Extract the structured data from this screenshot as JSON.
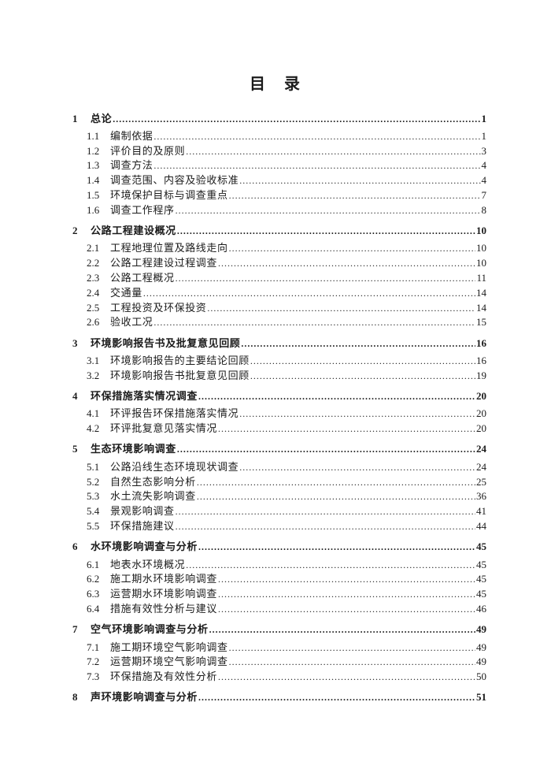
{
  "page": {
    "title": "目　录",
    "leader_char": "."
  },
  "colors": {
    "ink": "#1b1b1b",
    "paper": "#ffffff"
  },
  "toc": [
    {
      "level": 1,
      "num": "1",
      "label": "总论",
      "page": "1"
    },
    {
      "level": 2,
      "num": "1.1",
      "label": "编制依据",
      "page": "1"
    },
    {
      "level": 2,
      "num": "1.2",
      "label": "评价目的及原则",
      "page": "3"
    },
    {
      "level": 2,
      "num": "1.3",
      "label": "调查方法",
      "page": "4"
    },
    {
      "level": 2,
      "num": "1.4",
      "label": "调查范围、内容及验收标准",
      "page": "4"
    },
    {
      "level": 2,
      "num": "1.5",
      "label": "环境保护目标与调查重点",
      "page": "7"
    },
    {
      "level": 2,
      "num": "1.6",
      "label": "调查工作程序",
      "page": "8"
    },
    {
      "level": 1,
      "num": "2",
      "label": "公路工程建设概况",
      "page": "10"
    },
    {
      "level": 2,
      "num": "2.1",
      "label": "工程地理位置及路线走向",
      "page": "10"
    },
    {
      "level": 2,
      "num": "2.2",
      "label": "公路工程建设过程调查",
      "page": "10"
    },
    {
      "level": 2,
      "num": "2.3",
      "label": "公路工程概况",
      "page": "11"
    },
    {
      "level": 2,
      "num": "2.4",
      "label": "交通量",
      "page": "14"
    },
    {
      "level": 2,
      "num": "2.5",
      "label": "工程投资及环保投资",
      "page": "14"
    },
    {
      "level": 2,
      "num": "2.6",
      "label": "验收工况",
      "page": "15"
    },
    {
      "level": 1,
      "num": "3",
      "label": "环境影响报告书及批复意见回顾",
      "page": "16"
    },
    {
      "level": 2,
      "num": "3.1",
      "label": "环境影响报告的主要结论回顾",
      "page": "16"
    },
    {
      "level": 2,
      "num": "3.2",
      "label": "环境影响报告书批复意见回顾",
      "page": "19"
    },
    {
      "level": 1,
      "num": "4",
      "label": "环保措施落实情况调查",
      "page": "20"
    },
    {
      "level": 2,
      "num": "4.1",
      "label": "环评报告环保措施落实情况",
      "page": "20"
    },
    {
      "level": 2,
      "num": "4.2",
      "label": "环评批复意见落实情况",
      "page": "20"
    },
    {
      "level": 1,
      "num": "5",
      "label": "生态环境影响调查",
      "page": "24"
    },
    {
      "level": 2,
      "num": "5.1",
      "label": "公路沿线生态环境现状调查",
      "page": "24"
    },
    {
      "level": 2,
      "num": "5.2",
      "label": "自然生态影响分析",
      "page": "25"
    },
    {
      "level": 2,
      "num": "5.3",
      "label": "水土流失影响调查",
      "page": "36"
    },
    {
      "level": 2,
      "num": "5.4",
      "label": "景观影响调查",
      "page": "41"
    },
    {
      "level": 2,
      "num": "5.5",
      "label": "环保措施建议",
      "page": "44"
    },
    {
      "level": 1,
      "num": "6",
      "label": "水环境影响调查与分析",
      "page": "45"
    },
    {
      "level": 2,
      "num": "6.1",
      "label": "地表水环境概况",
      "page": "45"
    },
    {
      "level": 2,
      "num": "6.2",
      "label": "施工期水环境影响调查",
      "page": "45"
    },
    {
      "level": 2,
      "num": "6.3",
      "label": "运营期水环境影响调查",
      "page": "45"
    },
    {
      "level": 2,
      "num": "6.4",
      "label": "措施有效性分析与建议",
      "page": "46"
    },
    {
      "level": 1,
      "num": "7",
      "label": "空气环境影响调查与分析",
      "page": "49"
    },
    {
      "level": 2,
      "num": "7.1",
      "label": "施工期环境空气影响调查",
      "page": "49"
    },
    {
      "level": 2,
      "num": "7.2",
      "label": "运营期环境空气影响调查",
      "page": "49"
    },
    {
      "level": 2,
      "num": "7.3",
      "label": "环保措施及有效性分析",
      "page": "50"
    },
    {
      "level": 1,
      "num": "8",
      "label": "声环境影响调查与分析",
      "page": "51"
    }
  ]
}
